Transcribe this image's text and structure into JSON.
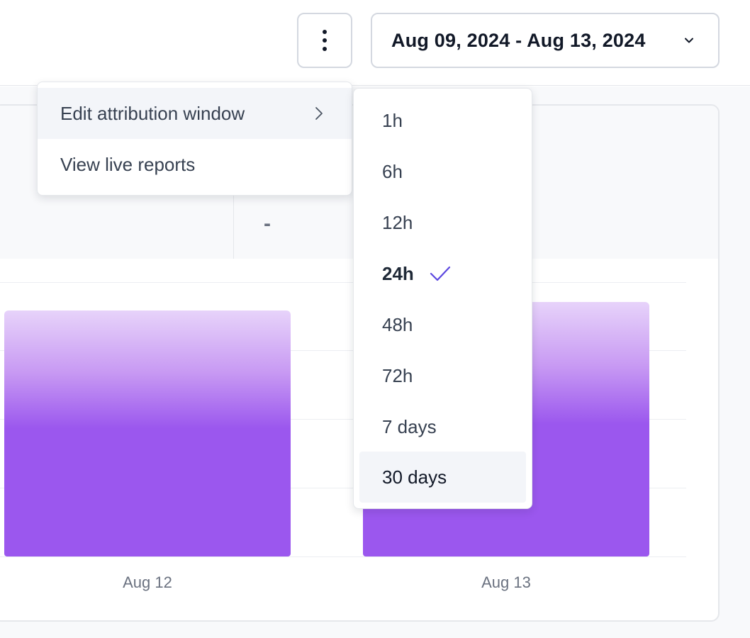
{
  "header": {
    "more_icon": "kebab-vertical-icon",
    "date_range": "Aug 09, 2024 - Aug 13, 2024",
    "date_chevron_icon": "chevron-down-icon"
  },
  "stats": {
    "value_dash": "-"
  },
  "menu": {
    "items": [
      {
        "label": "Edit attribution window",
        "icon": "chevron-right-icon",
        "active": true
      },
      {
        "label": "View live reports"
      }
    ]
  },
  "submenu": {
    "items": [
      {
        "label": "1h"
      },
      {
        "label": "6h"
      },
      {
        "label": "12h"
      },
      {
        "label": "24h",
        "selected": true
      },
      {
        "label": "48h"
      },
      {
        "label": "72h"
      },
      {
        "label": "7 days"
      },
      {
        "label": "30 days",
        "hovered": true
      }
    ],
    "check_icon": "check-icon",
    "accent_color": "#5b47e0"
  },
  "chart_data": {
    "type": "bar",
    "categories": [
      "Aug 12",
      "Aug 13"
    ],
    "colors": {
      "bar_top": "#e7d3fa",
      "bar_bottom": "#9b57ee"
    }
  }
}
